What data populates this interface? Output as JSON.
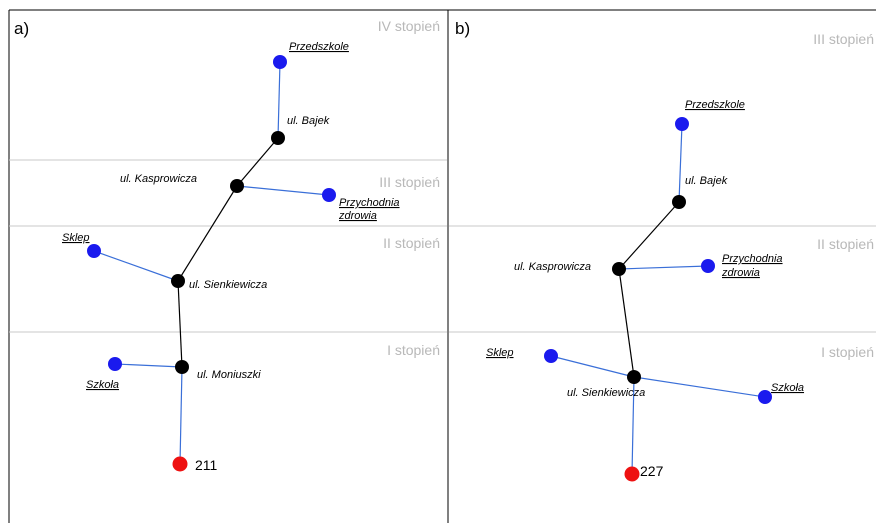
{
  "panel_a": {
    "label": "a)",
    "levels": [
      "IV stopień",
      "III stopień",
      "II stopień",
      "I stopień"
    ],
    "streets": {
      "bajek": "ul. Bajek",
      "kasprowicza": "ul. Kasprowicza",
      "sienkiewicza": "ul. Sienkiewicza",
      "moniuszki": "ul. Moniuszki"
    },
    "pois": {
      "przedszkole": "Przedszkole",
      "przychodnia_1": "Przychodnia",
      "przychodnia_2": "zdrowia",
      "sklep": "Sklep",
      "szkola": "Szkoła"
    },
    "source_value": "211"
  },
  "panel_b": {
    "label": "b)",
    "levels": [
      "III stopień",
      "II stopień",
      "I stopień"
    ],
    "streets": {
      "bajek": "ul. Bajek",
      "kasprowicza": "ul. Kasprowicza",
      "sienkiewicza": "ul. Sienkiewicza"
    },
    "pois": {
      "przedszkole": "Przedszkole",
      "przychodnia_1": "Przychodnia",
      "przychodnia_2": "zdrowia",
      "sklep": "Sklep",
      "szkola": "Szkoła"
    },
    "source_value": "227"
  },
  "colors": {
    "street_node": "#000000",
    "poi_node": "#1a1aee",
    "source_node": "#ee1111",
    "poi_edge": "#3a6fd8",
    "street_edge": "#000000",
    "level_text": "#b8b8b8"
  }
}
